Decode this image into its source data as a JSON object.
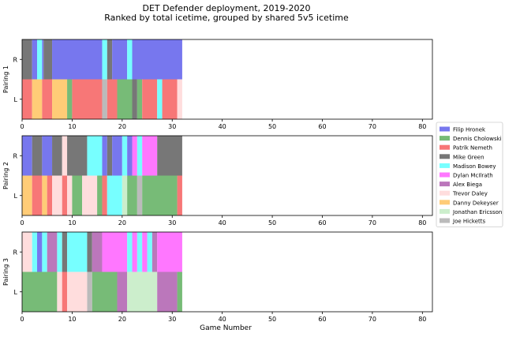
{
  "chart_data": {
    "type": "bar",
    "title": "DET Defender deployment, 2019-2020",
    "subtitle": "Ranked by total icetime, grouped by shared 5v5 icetime",
    "xlabel": "Game Number",
    "xlim": [
      0,
      82
    ],
    "xticks": [
      0,
      10,
      20,
      30,
      40,
      50,
      60,
      70,
      80
    ],
    "legend_position": "right",
    "players": [
      {
        "name": "Filip Hronek",
        "color": "#7777ee"
      },
      {
        "name": "Dennis Cholowski",
        "color": "#77bb77"
      },
      {
        "name": "Patrik Nemeth",
        "color": "#f77777"
      },
      {
        "name": "Mike Green",
        "color": "#777777"
      },
      {
        "name": "Madison Bowey",
        "color": "#77ffff"
      },
      {
        "name": "Dylan McIlrath",
        "color": "#ff77ff"
      },
      {
        "name": "Alex Biega",
        "color": "#bb77bb"
      },
      {
        "name": "Trevor Daley",
        "color": "#ffdddd"
      },
      {
        "name": "Danny Dekeyser",
        "color": "#ffcc77"
      },
      {
        "name": "Jonathan Ericsson",
        "color": "#cceecc"
      },
      {
        "name": "Joe Hicketts",
        "color": "#bbbbbb"
      }
    ],
    "pairings": [
      {
        "label": "Pairing 1",
        "rows": [
          {
            "side": "R",
            "segments": [
              {
                "start": 0,
                "end": 2,
                "player": "Mike Green"
              },
              {
                "start": 2,
                "end": 3,
                "player": "Filip Hronek"
              },
              {
                "start": 3,
                "end": 4,
                "player": "Madison Bowey"
              },
              {
                "start": 4,
                "end": 4.3,
                "player": "Filip Hronek"
              },
              {
                "start": 4.3,
                "end": 6,
                "player": "Mike Green"
              },
              {
                "start": 6,
                "end": 16,
                "player": "Filip Hronek"
              },
              {
                "start": 16,
                "end": 17,
                "player": "Madison Bowey"
              },
              {
                "start": 17,
                "end": 18,
                "player": "Mike Green"
              },
              {
                "start": 18,
                "end": 21,
                "player": "Filip Hronek"
              },
              {
                "start": 21,
                "end": 22,
                "player": "Madison Bowey"
              },
              {
                "start": 22,
                "end": 32,
                "player": "Filip Hronek"
              }
            ]
          },
          {
            "side": "L",
            "segments": [
              {
                "start": 0,
                "end": 2,
                "player": "Patrik Nemeth"
              },
              {
                "start": 2,
                "end": 4,
                "player": "Danny Dekeyser"
              },
              {
                "start": 4,
                "end": 6,
                "player": "Patrik Nemeth"
              },
              {
                "start": 6,
                "end": 9,
                "player": "Danny Dekeyser"
              },
              {
                "start": 9,
                "end": 10,
                "player": "Dennis Cholowski"
              },
              {
                "start": 10,
                "end": 16,
                "player": "Patrik Nemeth"
              },
              {
                "start": 16,
                "end": 17,
                "player": "Joe Hicketts"
              },
              {
                "start": 17,
                "end": 19,
                "player": "Patrik Nemeth"
              },
              {
                "start": 19,
                "end": 22,
                "player": "Dennis Cholowski"
              },
              {
                "start": 22,
                "end": 23,
                "player": "Mike Green"
              },
              {
                "start": 23,
                "end": 24,
                "player": "Dennis Cholowski"
              },
              {
                "start": 24,
                "end": 27,
                "player": "Patrik Nemeth"
              },
              {
                "start": 27,
                "end": 28,
                "player": "Madison Bowey"
              },
              {
                "start": 28,
                "end": 31,
                "player": "Patrik Nemeth"
              },
              {
                "start": 31,
                "end": 32,
                "player": "Trevor Daley"
              }
            ]
          }
        ]
      },
      {
        "label": "Pairing 2",
        "rows": [
          {
            "side": "R",
            "segments": [
              {
                "start": 0,
                "end": 2,
                "player": "Filip Hronek"
              },
              {
                "start": 2,
                "end": 4,
                "player": "Mike Green"
              },
              {
                "start": 4,
                "end": 6,
                "player": "Filip Hronek"
              },
              {
                "start": 6,
                "end": 8,
                "player": "Mike Green"
              },
              {
                "start": 8,
                "end": 9,
                "player": "Trevor Daley"
              },
              {
                "start": 9,
                "end": 13,
                "player": "Mike Green"
              },
              {
                "start": 13,
                "end": 16,
                "player": "Madison Bowey"
              },
              {
                "start": 16,
                "end": 17,
                "player": "Filip Hronek"
              },
              {
                "start": 17,
                "end": 18,
                "player": "Mike Green"
              },
              {
                "start": 18,
                "end": 20,
                "player": "Filip Hronek"
              },
              {
                "start": 20,
                "end": 21,
                "player": "Madison Bowey"
              },
              {
                "start": 21,
                "end": 22,
                "player": "Filip Hronek"
              },
              {
                "start": 22,
                "end": 23,
                "player": "Dylan McIlrath"
              },
              {
                "start": 23,
                "end": 24,
                "player": "Madison Bowey"
              },
              {
                "start": 24,
                "end": 27,
                "player": "Dylan McIlrath"
              },
              {
                "start": 27,
                "end": 32,
                "player": "Mike Green"
              }
            ]
          },
          {
            "side": "L",
            "segments": [
              {
                "start": 0,
                "end": 2,
                "player": "Danny Dekeyser"
              },
              {
                "start": 2,
                "end": 4,
                "player": "Patrik Nemeth"
              },
              {
                "start": 4,
                "end": 5,
                "player": "Danny Dekeyser"
              },
              {
                "start": 5,
                "end": 6,
                "player": "Patrik Nemeth"
              },
              {
                "start": 6,
                "end": 8,
                "player": "Trevor Daley"
              },
              {
                "start": 8,
                "end": 9,
                "player": "Patrik Nemeth"
              },
              {
                "start": 9,
                "end": 10,
                "player": "Trevor Daley"
              },
              {
                "start": 10,
                "end": 12,
                "player": "Dennis Cholowski"
              },
              {
                "start": 12,
                "end": 13,
                "player": "Trevor Daley"
              },
              {
                "start": 13,
                "end": 15,
                "player": "Trevor Daley"
              },
              {
                "start": 15,
                "end": 16,
                "player": "Dennis Cholowski"
              },
              {
                "start": 16,
                "end": 17,
                "player": "Patrik Nemeth"
              },
              {
                "start": 17,
                "end": 20,
                "player": "Madison Bowey"
              },
              {
                "start": 20,
                "end": 21,
                "player": "Jonathan Ericsson"
              },
              {
                "start": 21,
                "end": 23,
                "player": "Dennis Cholowski"
              },
              {
                "start": 23,
                "end": 24,
                "player": "Joe Hicketts"
              },
              {
                "start": 24,
                "end": 31,
                "player": "Dennis Cholowski"
              },
              {
                "start": 31,
                "end": 32,
                "player": "Patrik Nemeth"
              }
            ]
          }
        ]
      },
      {
        "label": "Pairing 3",
        "rows": [
          {
            "side": "R",
            "segments": [
              {
                "start": 0,
                "end": 2,
                "player": "Trevor Daley"
              },
              {
                "start": 2,
                "end": 3,
                "player": "Madison Bowey"
              },
              {
                "start": 3,
                "end": 4,
                "player": "Filip Hronek"
              },
              {
                "start": 4,
                "end": 5,
                "player": "Madison Bowey"
              },
              {
                "start": 5,
                "end": 7,
                "player": "Alex Biega"
              },
              {
                "start": 7,
                "end": 8,
                "player": "Madison Bowey"
              },
              {
                "start": 8,
                "end": 9,
                "player": "Mike Green"
              },
              {
                "start": 9,
                "end": 13,
                "player": "Madison Bowey"
              },
              {
                "start": 13,
                "end": 14,
                "player": "Mike Green"
              },
              {
                "start": 14,
                "end": 16,
                "player": "Alex Biega"
              },
              {
                "start": 16,
                "end": 21,
                "player": "Dylan McIlrath"
              },
              {
                "start": 21,
                "end": 22,
                "player": "Madison Bowey"
              },
              {
                "start": 22,
                "end": 23,
                "player": "Dylan McIlrath"
              },
              {
                "start": 23,
                "end": 24,
                "player": "Madison Bowey"
              },
              {
                "start": 24,
                "end": 25,
                "player": "Dylan McIlrath"
              },
              {
                "start": 25,
                "end": 26,
                "player": "Madison Bowey"
              },
              {
                "start": 26,
                "end": 27,
                "player": "Alex Biega"
              },
              {
                "start": 27,
                "end": 32,
                "player": "Dylan McIlrath"
              }
            ]
          },
          {
            "side": "L",
            "segments": [
              {
                "start": 0,
                "end": 7,
                "player": "Dennis Cholowski"
              },
              {
                "start": 7,
                "end": 8,
                "player": "Trevor Daley"
              },
              {
                "start": 8,
                "end": 9,
                "player": "Patrik Nemeth"
              },
              {
                "start": 9,
                "end": 13,
                "player": "Trevor Daley"
              },
              {
                "start": 13,
                "end": 14,
                "player": "Joe Hicketts"
              },
              {
                "start": 14,
                "end": 19,
                "player": "Dennis Cholowski"
              },
              {
                "start": 19,
                "end": 21,
                "player": "Alex Biega"
              },
              {
                "start": 21,
                "end": 27,
                "player": "Jonathan Ericsson"
              },
              {
                "start": 27,
                "end": 31,
                "player": "Alex Biega"
              },
              {
                "start": 31,
                "end": 32,
                "player": "Dennis Cholowski"
              }
            ]
          }
        ]
      }
    ]
  }
}
